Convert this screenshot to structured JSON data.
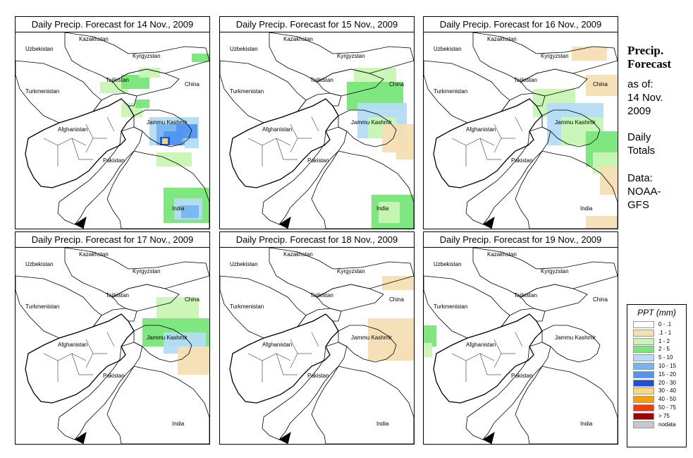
{
  "panels": [
    {
      "title": "Daily Precip. Forecast for  14 Nov., 2009"
    },
    {
      "title": "Daily Precip. Forecast for  15 Nov., 2009"
    },
    {
      "title": "Daily Precip. Forecast for  16 Nov., 2009"
    },
    {
      "title": "Daily Precip. Forecast for  17 Nov., 2009"
    },
    {
      "title": "Daily Precip. Forecast for  18 Nov., 2009"
    },
    {
      "title": "Daily Precip. Forecast for  19 Nov., 2009"
    }
  ],
  "map_labels": {
    "uzbekistan": "Uzbekistan",
    "kazakhstan": "Kazakhstan",
    "kyrgyzstan": "Kyrgyzstan",
    "tajikistan": "Tajikistan",
    "turkmenistan": "Turkmenistan",
    "china": "China",
    "afghanistan": "Afghanistan",
    "jammu_kashmir": "Jammu Kashmir",
    "pakistan": "Pakistan",
    "india": "India"
  },
  "sidebar": {
    "title_line1": "Precip.",
    "title_line2": "Forecast",
    "asof_line1": "as of:",
    "asof_line2": "14 Nov.",
    "asof_line3": "2009",
    "totals_line1": "Daily",
    "totals_line2": "Totals",
    "data_line1": "Data:",
    "data_line2": "NOAA-",
    "data_line3": "GFS"
  },
  "legend": {
    "title": "PPT (mm)",
    "items": [
      {
        "label": "0 - .1",
        "color": "#ffffff"
      },
      {
        "label": ".1 - 1",
        "color": "#f5deb3"
      },
      {
        "label": "1 - 2",
        "color": "#c8f5b4"
      },
      {
        "label": "2 - 5",
        "color": "#78e678"
      },
      {
        "label": "5 - 10",
        "color": "#b4dcf5"
      },
      {
        "label": "10 - 15",
        "color": "#78b4f0"
      },
      {
        "label": "15 - 20",
        "color": "#5096f0"
      },
      {
        "label": "20 - 30",
        "color": "#1e50dc"
      },
      {
        "label": "30 - 40",
        "color": "#f5dc78"
      },
      {
        "label": "40 - 50",
        "color": "#f5a000"
      },
      {
        "label": "50 - 75",
        "color": "#f03c00"
      },
      {
        "label": "> 75",
        "color": "#a00000"
      },
      {
        "label": "nodata",
        "color": "#c8c8c8"
      }
    ]
  }
}
